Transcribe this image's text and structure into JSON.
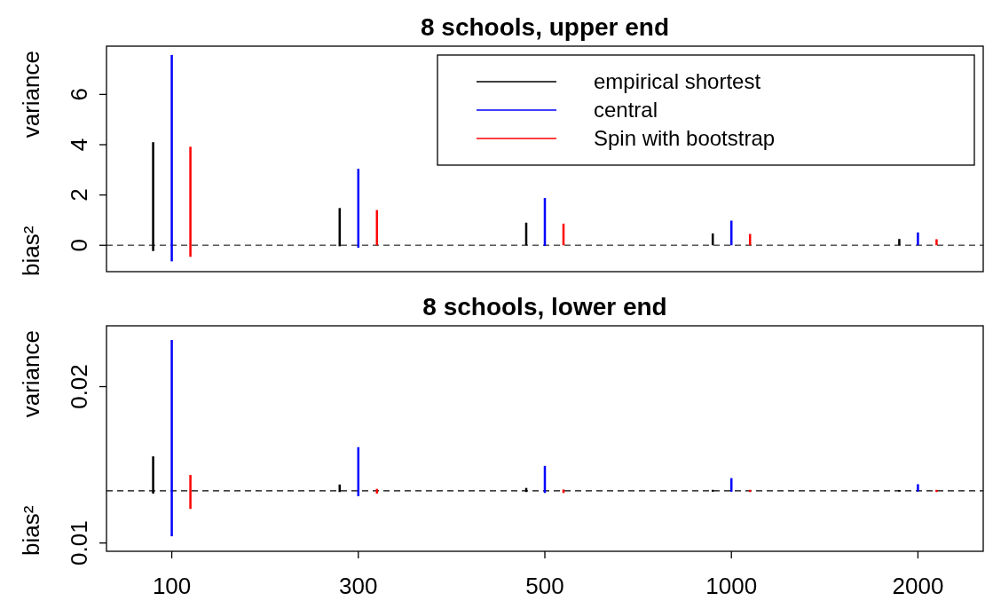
{
  "chart_data": [
    {
      "type": "bar",
      "title": "8 schools, upper end",
      "ylabel": "bias² variance",
      "categories": [
        null,
        null,
        null,
        null,
        null
      ],
      "ylim": [
        -1.05,
        7.92
      ],
      "yticks": [
        0,
        2,
        4,
        6
      ],
      "tick_labels": "y",
      "legend": "top right",
      "ref_lines": [
        {
          "axis": "y",
          "value": 0,
          "color": "#555555",
          "line_style": "dashed"
        }
      ],
      "series": [
        {
          "name": "empirical shortest",
          "color": "#000000",
          "base": [
            -0.23,
            -0.04,
            0,
            0,
            0
          ],
          "values": [
            4.33,
            1.52,
            0.9,
            0.47,
            0.25
          ]
        },
        {
          "name": "central",
          "color": "#0000ff",
          "base": [
            -0.64,
            -0.1,
            -0.03,
            0,
            0
          ],
          "values": [
            8.21,
            3.14,
            1.91,
            0.98,
            0.51
          ]
        },
        {
          "name": "Spin with bootstrap",
          "color": "#ff0000",
          "base": [
            -0.46,
            0,
            0,
            0,
            0
          ],
          "values": [
            4.38,
            1.4,
            0.86,
            0.45,
            0.24
          ]
        }
      ]
    },
    {
      "type": "bar",
      "title": "8 schools, lower end",
      "ylabel": "bias² variance",
      "categories": [
        "100",
        "300",
        "500",
        "1000",
        "2000"
      ],
      "ylim": [
        0.00947,
        0.02389
      ],
      "yticks": [
        0.01,
        0.02
      ],
      "ref_lines": [
        {
          "axis": "y",
          "value": 0.01334,
          "color": "#000000",
          "line_style": "dashed"
        }
      ],
      "series": [
        {
          "color": "#000000",
          "base": [
            0.01316,
            0.01326,
            0.01326,
            0.01328,
            0.01329
          ],
          "values": [
            0.00238,
            0.00048,
            0.00026,
            0.00012,
            0.0001
          ]
        },
        {
          "color": "#0000ff",
          "base": [
            0.01043,
            0.01299,
            0.0132,
            0.01328,
            0.01329
          ],
          "values": [
            0.01255,
            0.00314,
            0.00173,
            0.00087,
            0.00047
          ]
        },
        {
          "color": "#ff0000",
          "base": [
            0.01218,
            0.01316,
            0.0132,
            0.01326,
            0.01326
          ],
          "values": [
            0.00217,
            0.0003,
            0.00022,
            0.00014,
            0.00014
          ]
        }
      ]
    }
  ]
}
